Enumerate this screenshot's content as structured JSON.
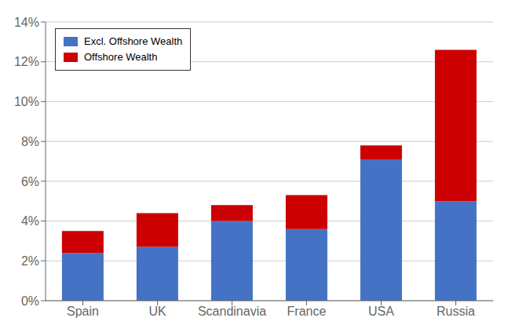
{
  "chart_data": {
    "type": "bar",
    "stacked": true,
    "categories": [
      "Spain",
      "UK",
      "Scandinavia",
      "France",
      "USA",
      "Russia"
    ],
    "series": [
      {
        "name": "Excl. Offshore Wealth",
        "color": "#4472C4",
        "values": [
          2.4,
          2.7,
          4.0,
          3.6,
          7.1,
          5.0
        ]
      },
      {
        "name": "Offshore Wealth",
        "color": "#CC0000",
        "values": [
          1.1,
          1.7,
          0.8,
          1.7,
          0.7,
          7.6
        ]
      }
    ],
    "ylim": [
      0,
      14
    ],
    "yticks": [
      {
        "value": 0,
        "label": "0%"
      },
      {
        "value": 2,
        "label": "2%"
      },
      {
        "value": 4,
        "label": "4%"
      },
      {
        "value": 6,
        "label": "6%"
      },
      {
        "value": 8,
        "label": "8%"
      },
      {
        "value": 10,
        "label": "10%"
      },
      {
        "value": 12,
        "label": "12%"
      },
      {
        "value": 14,
        "label": "14%"
      }
    ],
    "grid": true,
    "legend": "upper left"
  }
}
